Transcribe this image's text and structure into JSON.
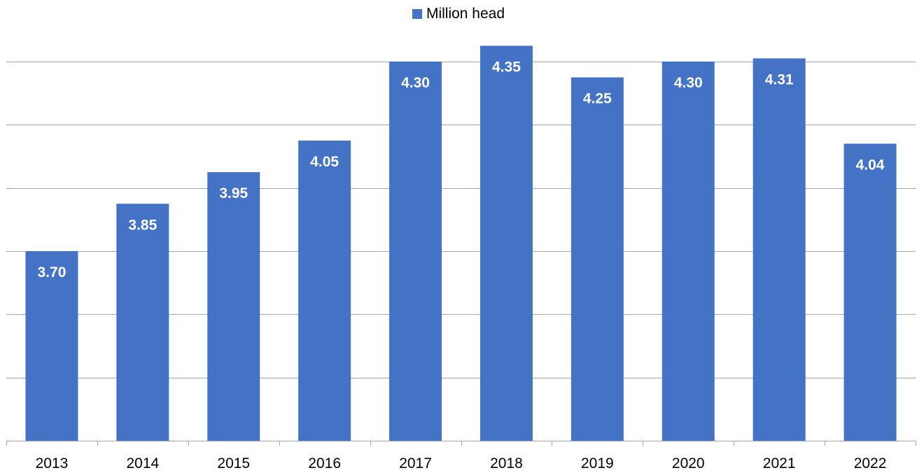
{
  "chart_data": {
    "type": "bar",
    "categories": [
      "2013",
      "2014",
      "2015",
      "2016",
      "2017",
      "2018",
      "2019",
      "2020",
      "2021",
      "2022"
    ],
    "series": [
      {
        "name": "Million head",
        "values": [
          3.7,
          3.85,
          3.95,
          4.05,
          4.3,
          4.35,
          4.25,
          4.3,
          4.31,
          4.04
        ],
        "labels": [
          "3.70",
          "3.85",
          "3.95",
          "4.05",
          "4.30",
          "4.35",
          "4.25",
          "4.30",
          "4.31",
          "4.04"
        ]
      }
    ],
    "ylim": [
      3.1,
      4.4
    ],
    "gridlines": [
      3.1,
      3.3,
      3.5,
      3.7,
      3.9,
      4.1,
      4.3
    ],
    "grid": true,
    "legend_position": "top-center",
    "colors": {
      "bar": "#4472C4",
      "grid": "#A6A6A6",
      "axis": "#A6A6A6",
      "label": "#FFFFFF",
      "tick_text": "#000000"
    }
  }
}
